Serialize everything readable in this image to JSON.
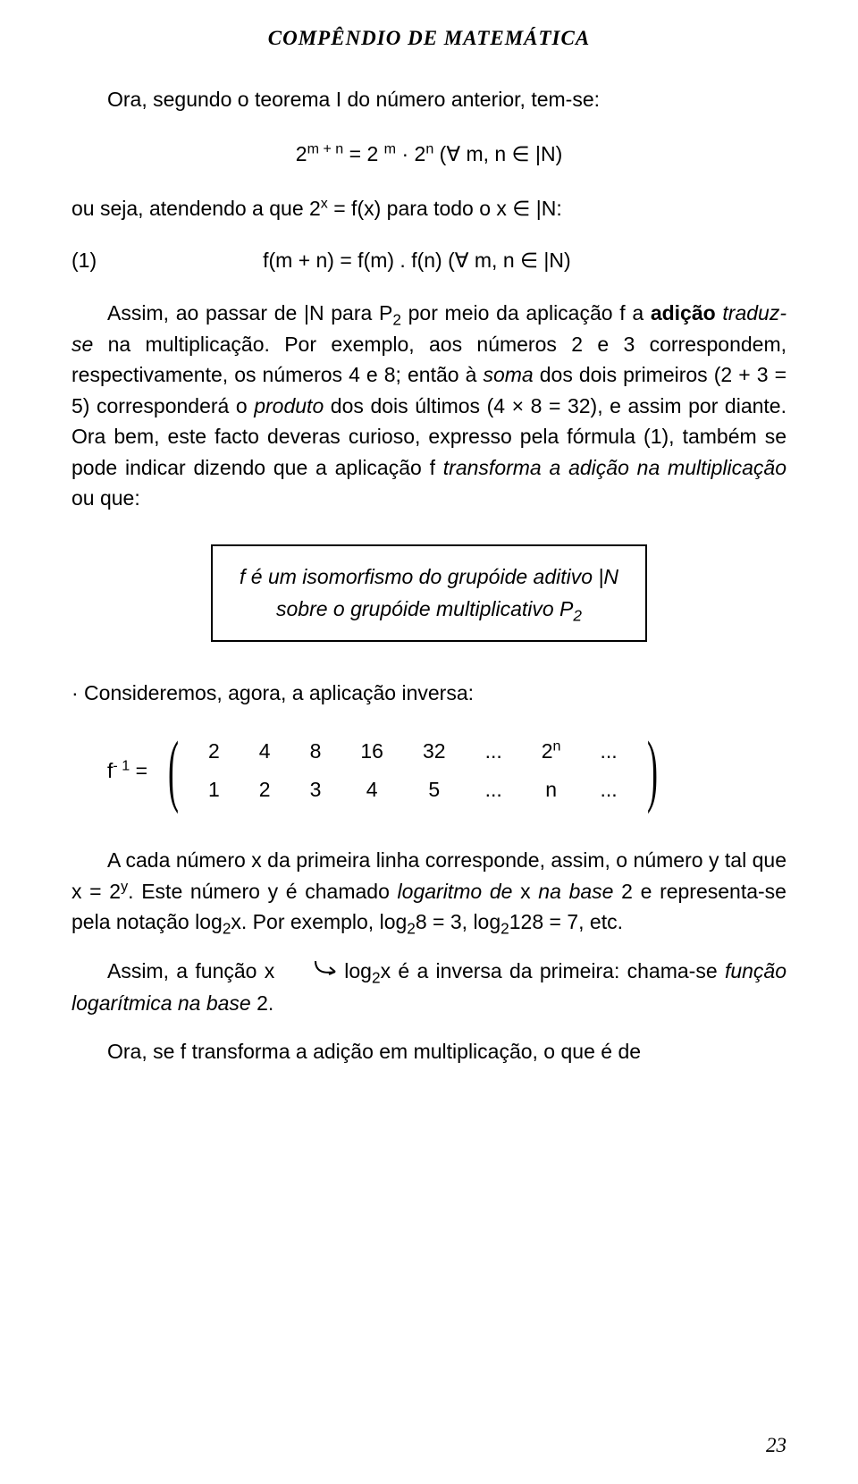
{
  "header": "COMPÊNDIO DE MATEMÁTICA",
  "p1": "Ora, segundo o teorema I do número anterior, tem-se:",
  "eq1_html": "2<sup>m + n</sup> = 2 <sup>m</sup> · 2<sup>n</sup>   (∀ m, n ∈ |N)",
  "p2_html": "ou seja, atendendo a que 2<sup>x</sup> = f(x) para todo o x ∈ |N:",
  "eq2_num": "(1)",
  "eq2_body": "f(m + n)  =  f(m) . f(n)   (∀  m, n ∈ |N)",
  "p3_html": "Assim, ao passar de |N para P<sub>2</sub> por meio da aplicação f a <b>adição</b> <i>traduz-se</i> na multiplicação. Por exemplo, aos números 2 e 3 correspondem, respectivamente, os números 4 e 8; então à <i>soma</i> dos dois primeiros (2 + 3 = 5) corresponderá o <i>produto</i> dos dois últimos (4 × 8 = 32), e assim por diante. Ora bem, este facto deveras curioso, expresso pela fórmula (1), também se pode indicar dizendo que a aplicação f <i>transforma a adição na multiplicação</i> ou que:",
  "box_line1": "f é um isomorfismo do grupóide aditivo |N",
  "box_line2_html": "sobre o grupóide multiplicativo P<sub>2</sub>",
  "p4": "·  Consideremos, agora, a aplicação inversa:",
  "matrix_label_html": "f<sup>- 1</sup> =",
  "matrix": {
    "row1": [
      "2",
      "4",
      "8",
      "16",
      "32",
      "...",
      "2<sup>n</sup>",
      "..."
    ],
    "row2": [
      "1",
      "2",
      "3",
      "4",
      "5",
      "...",
      "n",
      "..."
    ]
  },
  "p5_html": "A cada número x da primeira linha corresponde, assim, o número y tal que x = 2<sup>y</sup>. Este número y é chamado <i>logaritmo de</i> x <i>na base</i> 2 e representa-se pela notação log<sub>2</sub>x. Por exemplo, log<sub>2</sub>8 = 3, log<sub>2</sub>128 = 7, etc.",
  "p6_pre": "Assim, a função x",
  "p6_post_html": "log<sub>2</sub>x é a inversa da primeira: chama-se <i>função logarítmica na base</i> 2.",
  "p7": "Ora, se f transforma a adição em multiplicação, o que é de",
  "page_number": "23"
}
